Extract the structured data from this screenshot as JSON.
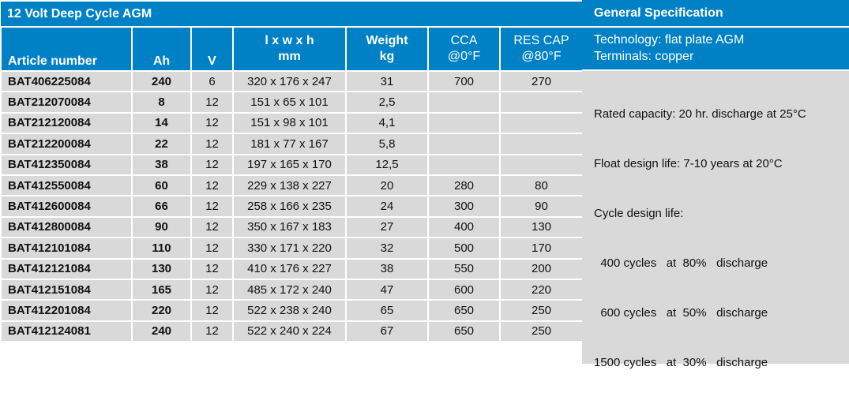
{
  "table": {
    "title": "12 Volt Deep Cycle AGM",
    "headers": {
      "article": "Article number",
      "ah": "Ah",
      "v": "V",
      "dims_1": "l x w x h",
      "dims_2": "mm",
      "weight_1": "Weight",
      "weight_2": "kg",
      "cca_1": "CCA",
      "cca_2": "@0°F",
      "res_1": "RES CAP",
      "res_2": "@80°F"
    },
    "rows": [
      [
        "BAT406225084",
        "240",
        "6",
        "320 x 176 x 247",
        "31",
        "700",
        "270"
      ],
      [
        "BAT212070084",
        "8",
        "12",
        "151 x 65 x 101",
        "2,5",
        "",
        ""
      ],
      [
        "BAT212120084",
        "14",
        "12",
        "151 x 98 x 101",
        "4,1",
        "",
        ""
      ],
      [
        "BAT212200084",
        "22",
        "12",
        "181 x 77 x 167",
        "5,8",
        "",
        ""
      ],
      [
        "BAT412350084",
        "38",
        "12",
        "197 x 165 x 170",
        "12,5",
        "",
        ""
      ],
      [
        "BAT412550084",
        "60",
        "12",
        "229 x 138 x 227",
        "20",
        "280",
        "80"
      ],
      [
        "BAT412600084",
        "66",
        "12",
        "258 x 166 x 235",
        "24",
        "300",
        "90"
      ],
      [
        "BAT412800084",
        "90",
        "12",
        "350 x 167 x 183",
        "27",
        "400",
        "130"
      ],
      [
        "BAT412101084",
        "110",
        "12",
        "330 x 171 x 220",
        "32",
        "500",
        "170"
      ],
      [
        "BAT412121084",
        "130",
        "12",
        "410 x 176 x 227",
        "38",
        "550",
        "200"
      ],
      [
        "BAT412151084",
        "165",
        "12",
        "485 x 172 x 240",
        "47",
        "600",
        "220"
      ],
      [
        "BAT412201084",
        "220",
        "12",
        "522 x 238 x 240",
        "65",
        "650",
        "250"
      ],
      [
        "BAT412124081",
        "240",
        "12",
        "522 x 240 x 224",
        "67",
        "650",
        "250"
      ]
    ]
  },
  "spec": {
    "title": "General Specification",
    "header_lines": [
      "Technology: flat plate AGM",
      "Terminals: copper"
    ],
    "body_lines": [
      "Rated capacity: 20 hr. discharge at 25°C",
      "Float design life: 7-10 years at 20°C",
      "Cycle design life:",
      "  400 cycles   at  80%   discharge",
      "  600 cycles   at  50%   discharge",
      "1500 cycles   at  30%   discharge"
    ]
  },
  "colors": {
    "header_blue": "#0081c6",
    "cell_gray": "#d9d9d9"
  }
}
